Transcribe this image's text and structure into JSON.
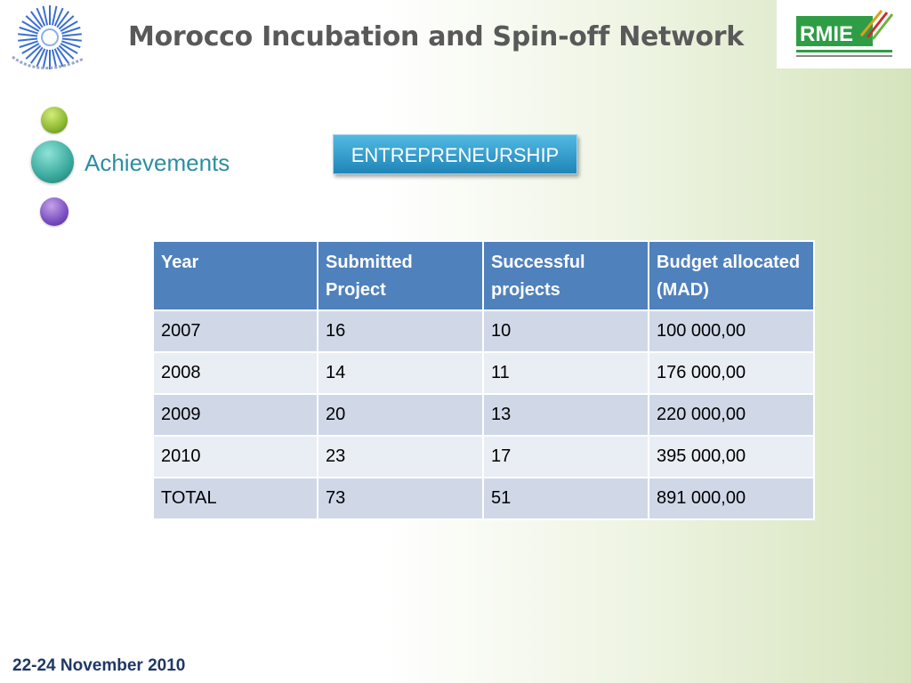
{
  "header": {
    "title": "Morocco Incubation and Spin-off Network"
  },
  "logos": {
    "left": "cnrst-logo",
    "right": "rmie-logo",
    "right_text": "RMIE"
  },
  "section": {
    "label": "Achievements",
    "badge": "ENTREPRENEURSHIP"
  },
  "table": {
    "columns": [
      "Year",
      "Submitted Project",
      "Successful projects",
      "Budget allocated (MAD)"
    ],
    "rows": [
      [
        "2007",
        "16",
        "10",
        "100 000,00"
      ],
      [
        "2008",
        "14",
        "11",
        "176 000,00"
      ],
      [
        "2009",
        "20",
        "13",
        "220 000,00"
      ],
      [
        "2010",
        "23",
        "17",
        "395 000,00"
      ],
      [
        "TOTAL",
        "73",
        "51",
        "891 000,00"
      ]
    ]
  },
  "footer": {
    "date": "22-24 November 2010"
  },
  "colors": {
    "header_fill": "#4f81bd",
    "row_odd": "#d0d8e8",
    "row_even": "#e9edf4",
    "badge": "#2e9ccf",
    "accent_teal": "#2b8fa0"
  }
}
